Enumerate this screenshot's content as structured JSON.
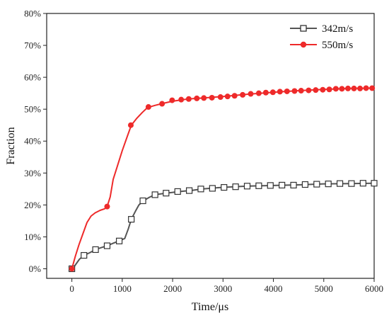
{
  "chart_data": {
    "type": "line",
    "title": "",
    "xlabel": "Time/μs",
    "ylabel": "Fraction",
    "xlim": [
      -500,
      6000
    ],
    "ylim": [
      -0.03,
      0.8
    ],
    "xticks": [
      0,
      1000,
      2000,
      3000,
      4000,
      5000,
      6000
    ],
    "yticks": [
      0,
      0.1,
      0.2,
      0.3,
      0.4,
      0.5,
      0.6,
      0.7,
      0.8
    ],
    "ytick_labels": [
      "0%",
      "10%",
      "20%",
      "30%",
      "40%",
      "50%",
      "60%",
      "70%",
      "80%"
    ],
    "legend": "top-right",
    "grid": false,
    "series": [
      {
        "name": "342m/s",
        "color": "#555555",
        "marker": "square-open",
        "line": [
          [
            0,
            0
          ],
          [
            60,
            0.01
          ],
          [
            150,
            0.03
          ],
          [
            240,
            0.042
          ],
          [
            350,
            0.05
          ],
          [
            470,
            0.06
          ],
          [
            580,
            0.066
          ],
          [
            700,
            0.072
          ],
          [
            820,
            0.08
          ],
          [
            950,
            0.088
          ],
          [
            1050,
            0.095
          ],
          [
            1120,
            0.125
          ],
          [
            1180,
            0.155
          ],
          [
            1260,
            0.18
          ],
          [
            1330,
            0.2
          ],
          [
            1420,
            0.213
          ],
          [
            1540,
            0.224
          ],
          [
            1650,
            0.232
          ],
          [
            1870,
            0.237
          ],
          [
            2150,
            0.242
          ],
          [
            2400,
            0.246
          ],
          [
            2600,
            0.25
          ],
          [
            2900,
            0.254
          ],
          [
            3200,
            0.257
          ],
          [
            3500,
            0.259
          ],
          [
            4000,
            0.261
          ],
          [
            4500,
            0.263
          ],
          [
            5000,
            0.266
          ],
          [
            5500,
            0.267
          ],
          [
            6000,
            0.268
          ]
        ],
        "markers": [
          [
            0,
            0
          ],
          [
            240,
            0.042
          ],
          [
            470,
            0.06
          ],
          [
            700,
            0.072
          ],
          [
            940,
            0.087
          ],
          [
            1180,
            0.155
          ],
          [
            1410,
            0.213
          ],
          [
            1650,
            0.232
          ],
          [
            1870,
            0.237
          ],
          [
            2100,
            0.242
          ],
          [
            2330,
            0.245
          ],
          [
            2560,
            0.25
          ],
          [
            2790,
            0.252
          ],
          [
            3020,
            0.255
          ],
          [
            3250,
            0.257
          ],
          [
            3480,
            0.259
          ],
          [
            3710,
            0.26
          ],
          [
            3940,
            0.261
          ],
          [
            4170,
            0.262
          ],
          [
            4400,
            0.262
          ],
          [
            4630,
            0.264
          ],
          [
            4860,
            0.265
          ],
          [
            5090,
            0.266
          ],
          [
            5320,
            0.267
          ],
          [
            5550,
            0.267
          ],
          [
            5780,
            0.268
          ],
          [
            6000,
            0.268
          ]
        ]
      },
      {
        "name": "550m/s",
        "color": "#ee2a2a",
        "marker": "circle-filled",
        "line": [
          [
            0,
            0
          ],
          [
            70,
            0.04
          ],
          [
            140,
            0.075
          ],
          [
            220,
            0.11
          ],
          [
            300,
            0.145
          ],
          [
            380,
            0.165
          ],
          [
            460,
            0.175
          ],
          [
            560,
            0.183
          ],
          [
            650,
            0.188
          ],
          [
            700,
            0.195
          ],
          [
            760,
            0.225
          ],
          [
            820,
            0.28
          ],
          [
            900,
            0.32
          ],
          [
            1000,
            0.37
          ],
          [
            1100,
            0.415
          ],
          [
            1180,
            0.45
          ],
          [
            1280,
            0.47
          ],
          [
            1400,
            0.49
          ],
          [
            1500,
            0.505
          ],
          [
            1650,
            0.512
          ],
          [
            1800,
            0.518
          ],
          [
            2000,
            0.525
          ],
          [
            2300,
            0.532
          ],
          [
            2600,
            0.535
          ],
          [
            3000,
            0.54
          ],
          [
            3500,
            0.547
          ],
          [
            4000,
            0.553
          ],
          [
            4500,
            0.558
          ],
          [
            5000,
            0.562
          ],
          [
            5500,
            0.565
          ],
          [
            6000,
            0.566
          ]
        ],
        "markers": [
          [
            0,
            0
          ],
          [
            700,
            0.195
          ],
          [
            1170,
            0.45
          ],
          [
            1520,
            0.507
          ],
          [
            1790,
            0.517
          ],
          [
            1990,
            0.528
          ],
          [
            2170,
            0.53
          ],
          [
            2320,
            0.532
          ],
          [
            2480,
            0.534
          ],
          [
            2620,
            0.535
          ],
          [
            2780,
            0.536
          ],
          [
            2950,
            0.538
          ],
          [
            3090,
            0.54
          ],
          [
            3230,
            0.542
          ],
          [
            3390,
            0.545
          ],
          [
            3550,
            0.548
          ],
          [
            3710,
            0.55
          ],
          [
            3850,
            0.552
          ],
          [
            3990,
            0.553
          ],
          [
            4130,
            0.555
          ],
          [
            4270,
            0.556
          ],
          [
            4420,
            0.557
          ],
          [
            4550,
            0.558
          ],
          [
            4700,
            0.559
          ],
          [
            4840,
            0.56
          ],
          [
            4980,
            0.561
          ],
          [
            5110,
            0.562
          ],
          [
            5240,
            0.564
          ],
          [
            5360,
            0.564
          ],
          [
            5480,
            0.565
          ],
          [
            5600,
            0.565
          ],
          [
            5720,
            0.565
          ],
          [
            5840,
            0.566
          ],
          [
            5960,
            0.566
          ]
        ]
      }
    ]
  }
}
